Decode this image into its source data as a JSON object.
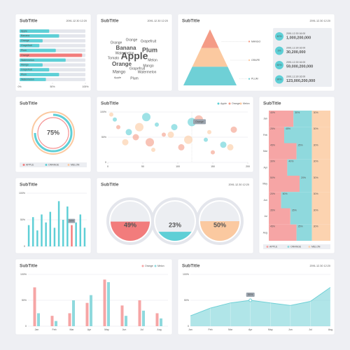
{
  "chart_data": [
    {
      "type": "hbar",
      "title": "SubTitle",
      "subtitle": "2091.12.30 12:20",
      "categories": [
        "Apple",
        "Banana",
        "Orange",
        "Grapefruit",
        "Plum",
        "Orange",
        "Watermelon",
        "Mango",
        "Grapefruit",
        "Plum",
        "Watermelon"
      ],
      "values": [
        45,
        60,
        35,
        30,
        55,
        95,
        70,
        35,
        45,
        60,
        40
      ],
      "colors": [
        "#5ecfd6",
        "#5ecfd6",
        "#5ecfd6",
        "#5ecfd6",
        "#5ecfd6",
        "#f27c7c",
        "#5ecfd6",
        "#5ecfd6",
        "#5ecfd6",
        "#5ecfd6",
        "#5ecfd6"
      ],
      "xlim": [
        0,
        100
      ],
      "xticks": [
        {
          "value": 0,
          "label": "0%"
        },
        {
          "value": 50,
          "label": "50%"
        },
        {
          "value": 100,
          "label": "100%"
        }
      ]
    },
    {
      "type": "wordcloud",
      "title": "SubTitle",
      "subtitle": "2091.12.30 12:20",
      "words": [
        "Apple",
        "Banana",
        "Plum",
        "Orange",
        "Mango",
        "Grapefruit",
        "Watermelon",
        "Orange",
        "Melon",
        "Tomato",
        "Grapefruit",
        "Watermelon",
        "Plum",
        "Mango",
        "Orange",
        "Apple"
      ]
    },
    {
      "type": "pyramid",
      "title": "SubTitle",
      "subtitle": "2091.12.30 12:20",
      "categories": [
        "MANGO",
        "GRAPE",
        "PLUM"
      ],
      "colors": [
        "#f49b86",
        "#fbc9a0",
        "#6fd0d6"
      ],
      "items": [
        {
          "value": 40,
          "label": "40%",
          "date": "2091.12.30 16:00",
          "amount": "1,000,200,000"
        },
        {
          "value": 3,
          "label": "3%",
          "date": "2091.12.30 16:00",
          "amount": "30,200,000"
        },
        {
          "value": 60,
          "label": "60%",
          "date": "2091.12.30 16:00",
          "amount": "59,000,200,000"
        },
        {
          "value": 90,
          "label": "90%",
          "date": "2091.12.30 16:00",
          "amount": "123,000,200,000"
        }
      ]
    },
    {
      "type": "donut",
      "title": "SubTitle",
      "value": 75,
      "value_label": "75%",
      "categories": [
        "APPLE",
        "ORANGE",
        "MELON"
      ],
      "colors": [
        "#f27c7c",
        "#5ecfd6",
        "#fbc9a0"
      ]
    },
    {
      "type": "scatter",
      "title": "SubTitle",
      "annotation": "Orange",
      "series": [
        {
          "name": "Apple",
          "color": "#5ecfd6",
          "x": [
            10,
            30,
            55,
            70,
            95,
            120,
            140,
            165
          ],
          "values": [
            85,
            60,
            90,
            75,
            70,
            80,
            45,
            35
          ]
        },
        {
          "name": "Orange",
          "color": "#f49b86",
          "x": [
            15,
            40,
            60,
            80,
            105,
            130,
            150,
            180
          ],
          "values": [
            70,
            50,
            40,
            55,
            30,
            85,
            20,
            65
          ]
        },
        {
          "name": "Melon",
          "color": "#fbc9a0",
          "x": [
            5,
            25,
            45,
            65,
            90,
            115,
            145,
            175
          ],
          "values": [
            95,
            40,
            70,
            25,
            55,
            45,
            60,
            30
          ]
        }
      ],
      "xlim": [
        0,
        200
      ],
      "xticks": [
        0,
        50,
        100,
        150,
        200
      ],
      "ylim": [
        0,
        100
      ],
      "yticks": [
        0,
        {
          "value": 50,
          "label": "50%"
        },
        {
          "value": 100,
          "label": "100%"
        }
      ]
    },
    {
      "type": "stacked",
      "title": "SubTitle",
      "categories": [
        "Jan",
        "Feb",
        "Mar",
        "Apr",
        "May",
        "Jun",
        "Jul",
        "Aug"
      ],
      "series": [
        {
          "name": "APPLE",
          "color": "#f6a5a5",
          "values": [
            40,
            25,
            45,
            30,
            50,
            20,
            35,
            45
          ],
          "value_labels": [
            "40%",
            "25%",
            "45%",
            "30%",
            "50%",
            "20%",
            "35%",
            "45%"
          ]
        },
        {
          "name": "ORANGE",
          "color": "#8fd9dd",
          "values": [
            30,
            45,
            25,
            40,
            20,
            50,
            35,
            25
          ],
          "value_labels": [
            "30%",
            "45%",
            "25%",
            "40%",
            "20%",
            "50%",
            "35%",
            "25%"
          ]
        },
        {
          "name": "MELON",
          "color": "#fcd3b0",
          "values": [
            30,
            30,
            30,
            30,
            30,
            30,
            30,
            30
          ],
          "value_labels": [
            "30%",
            "30%",
            "30%",
            "30%",
            "30%",
            "30%",
            "30%",
            "30%"
          ]
        }
      ]
    },
    {
      "type": "bar",
      "title": "SubTitle",
      "annotation": "50%",
      "values": [
        40,
        55,
        30,
        60,
        45,
        65,
        35,
        85,
        50,
        75,
        40,
        45,
        60,
        35
      ],
      "colors": [
        "#5ecfd6",
        "#5ecfd6",
        "#5ecfd6",
        "#5ecfd6",
        "#5ecfd6",
        "#5ecfd6",
        "#5ecfd6",
        "#5ecfd6",
        "#5ecfd6",
        "#5ecfd6",
        "#f27c7c",
        "#5ecfd6",
        "#5ecfd6",
        "#5ecfd6"
      ],
      "ylim": [
        0,
        100
      ],
      "yticks": [
        0,
        {
          "value": 50,
          "label": "50%"
        },
        {
          "value": 100,
          "label": "100%"
        }
      ]
    },
    {
      "type": "gauge",
      "title": "SubTitle",
      "subtitle": "2091.12.30 12:20",
      "values": [
        49,
        23,
        50
      ],
      "value_labels": [
        "49%",
        "23%",
        "50%"
      ],
      "colors": [
        "#f27c7c",
        "#5ecfd6",
        "#fbc9a0"
      ]
    },
    {
      "type": "grouped",
      "title": "SubTitle",
      "categories": [
        "Jan",
        "Feb",
        "Mar",
        "Apr",
        "May",
        "Jun",
        "Jul",
        "Aug"
      ],
      "series": [
        {
          "name": "Orange",
          "color": "#f6a5a5",
          "values": [
            75,
            20,
            25,
            45,
            90,
            40,
            50,
            25
          ]
        },
        {
          "name": "Melon",
          "color": "#8fd9dd",
          "values": [
            25,
            10,
            50,
            60,
            85,
            20,
            30,
            15
          ]
        }
      ],
      "ylim": [
        0,
        100
      ],
      "yticks": [
        0,
        {
          "value": 50,
          "label": "50%"
        },
        {
          "value": 100,
          "label": "100%"
        }
      ]
    },
    {
      "type": "area",
      "title": "SubTitle",
      "subtitle": "2091.12.30 12:20",
      "annotation": "50%",
      "categories": [
        "Jan",
        "Feb",
        "Mar",
        "Apr",
        "May",
        "Jun",
        "Jul",
        "Aug"
      ],
      "values": [
        20,
        35,
        45,
        50,
        45,
        40,
        48,
        75
      ],
      "color": "#6fd0d6",
      "ylim": [
        0,
        100
      ],
      "yticks": [
        0,
        {
          "value": 50,
          "label": "50%"
        },
        {
          "value": 100,
          "label": "100%"
        }
      ]
    }
  ]
}
